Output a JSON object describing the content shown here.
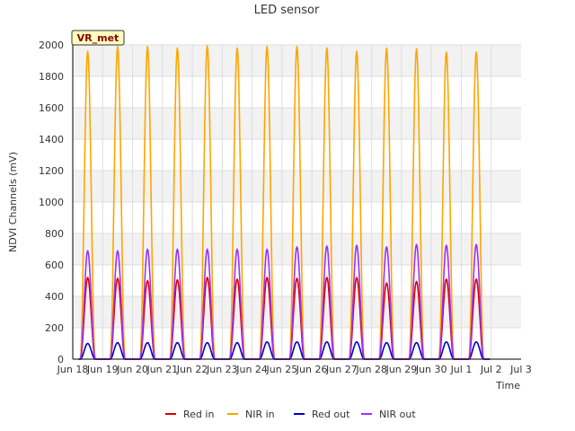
{
  "chart_data": {
    "type": "line",
    "title": "LED sensor",
    "xlabel": "Time",
    "ylabel": "NDVI Channels (mV)",
    "ylim": [
      0,
      2000
    ],
    "yticks": [
      0,
      200,
      400,
      600,
      800,
      1000,
      1200,
      1400,
      1600,
      1800,
      2000
    ],
    "xlim": [
      0,
      15
    ],
    "xticks": [
      {
        "pos": 0,
        "label": "Jun 18"
      },
      {
        "pos": 1,
        "label": "Jun 19"
      },
      {
        "pos": 2,
        "label": "Jun 20"
      },
      {
        "pos": 3,
        "label": "Jun 21"
      },
      {
        "pos": 4,
        "label": "Jun 22"
      },
      {
        "pos": 5,
        "label": "Jun 23"
      },
      {
        "pos": 6,
        "label": "Jun 24"
      },
      {
        "pos": 7,
        "label": "Jun 25"
      },
      {
        "pos": 8,
        "label": "Jun 26"
      },
      {
        "pos": 9,
        "label": "Jun 27"
      },
      {
        "pos": 10,
        "label": "Jun 28"
      },
      {
        "pos": 11,
        "label": "Jun 29"
      },
      {
        "pos": 12,
        "label": "Jun 30"
      },
      {
        "pos": 13,
        "label": "Jul 1"
      },
      {
        "pos": 14,
        "label": "Jul 2"
      },
      {
        "pos": 15,
        "label": "Jul 3"
      }
    ],
    "annotation": "VR_met",
    "day_centers": [
      0.5,
      1.5,
      2.5,
      3.5,
      4.5,
      5.5,
      6.5,
      7.5,
      8.5,
      9.5,
      10.5,
      11.5,
      12.5,
      13.5
    ],
    "day_half_width": 0.25,
    "series": [
      {
        "name": "Red in",
        "color": "#dd0000",
        "peaks": [
          520,
          515,
          500,
          505,
          520,
          510,
          520,
          515,
          520,
          520,
          485,
          495,
          510,
          510
        ]
      },
      {
        "name": "NIR in",
        "color": "#ffa500",
        "peaks": [
          1960,
          1990,
          1990,
          1980,
          1995,
          1980,
          1990,
          1990,
          1980,
          1960,
          1980,
          1975,
          1955,
          1955
        ]
      },
      {
        "name": "Red out",
        "color": "#0000cc",
        "peaks": [
          100,
          105,
          105,
          105,
          105,
          105,
          110,
          110,
          110,
          110,
          105,
          105,
          110,
          110
        ]
      },
      {
        "name": "NIR out",
        "color": "#9b30ff",
        "peaks": [
          690,
          690,
          700,
          700,
          700,
          700,
          700,
          715,
          720,
          725,
          715,
          730,
          725,
          730
        ]
      }
    ]
  }
}
